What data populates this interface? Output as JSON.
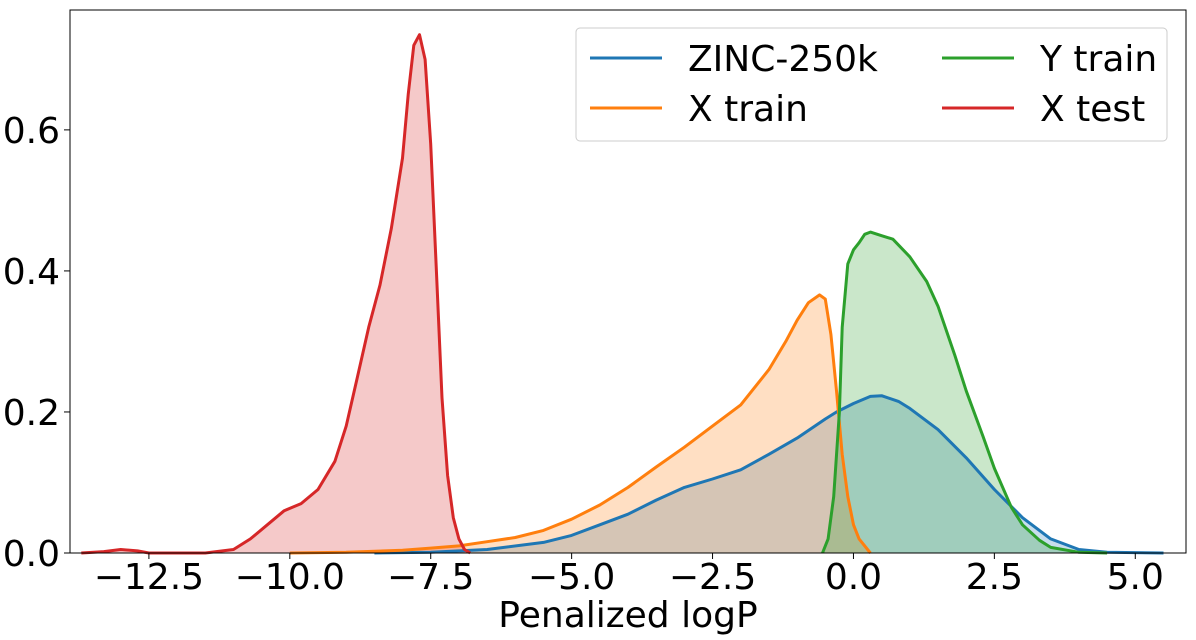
{
  "chart_data": {
    "type": "area",
    "title": "",
    "xlabel": "Penalized logP",
    "ylabel": "",
    "xlim": [
      -13.9,
      5.9
    ],
    "ylim": [
      0,
      0.77
    ],
    "xticks": [
      -12.5,
      -10.0,
      -7.5,
      -5.0,
      -2.5,
      0.0,
      2.5,
      5.0
    ],
    "xtick_labels": [
      "−12.5",
      "−10.0",
      "−7.5",
      "−5.0",
      "−2.5",
      "0.0",
      "2.5",
      "5.0"
    ],
    "yticks": [
      0.0,
      0.2,
      0.4,
      0.6
    ],
    "ytick_labels": [
      "0.0",
      "0.2",
      "0.4",
      "0.6"
    ],
    "grid": false,
    "legend": {
      "position": "top-right",
      "columns": 2
    },
    "series": [
      {
        "name": "ZINC-250k",
        "color": "#1f77b4",
        "fill_alpha": 0.25,
        "points": [
          [
            -8.5,
            0.0
          ],
          [
            -7.5,
            0.001
          ],
          [
            -6.5,
            0.005
          ],
          [
            -5.5,
            0.015
          ],
          [
            -5.0,
            0.025
          ],
          [
            -4.5,
            0.04
          ],
          [
            -4.0,
            0.055
          ],
          [
            -3.5,
            0.075
          ],
          [
            -3.0,
            0.093
          ],
          [
            -2.5,
            0.105
          ],
          [
            -2.0,
            0.118
          ],
          [
            -1.5,
            0.14
          ],
          [
            -1.0,
            0.163
          ],
          [
            -0.5,
            0.19
          ],
          [
            -0.3,
            0.2
          ],
          [
            0.0,
            0.212
          ],
          [
            0.3,
            0.222
          ],
          [
            0.5,
            0.223
          ],
          [
            0.8,
            0.215
          ],
          [
            1.0,
            0.205
          ],
          [
            1.5,
            0.175
          ],
          [
            2.0,
            0.135
          ],
          [
            2.5,
            0.09
          ],
          [
            3.0,
            0.05
          ],
          [
            3.5,
            0.02
          ],
          [
            4.0,
            0.005
          ],
          [
            4.5,
            0.001
          ],
          [
            5.5,
            0.0
          ]
        ]
      },
      {
        "name": "X train",
        "color": "#ff7f0e",
        "fill_alpha": 0.25,
        "points": [
          [
            -10.0,
            0.0
          ],
          [
            -9.0,
            0.001
          ],
          [
            -8.0,
            0.004
          ],
          [
            -7.5,
            0.007
          ],
          [
            -7.0,
            0.01
          ],
          [
            -6.5,
            0.016
          ],
          [
            -6.0,
            0.022
          ],
          [
            -5.5,
            0.032
          ],
          [
            -5.0,
            0.048
          ],
          [
            -4.5,
            0.068
          ],
          [
            -4.0,
            0.093
          ],
          [
            -3.5,
            0.122
          ],
          [
            -3.0,
            0.15
          ],
          [
            -2.5,
            0.18
          ],
          [
            -2.0,
            0.21
          ],
          [
            -1.5,
            0.26
          ],
          [
            -1.2,
            0.3
          ],
          [
            -1.0,
            0.33
          ],
          [
            -0.8,
            0.355
          ],
          [
            -0.6,
            0.366
          ],
          [
            -0.5,
            0.36
          ],
          [
            -0.4,
            0.31
          ],
          [
            -0.3,
            0.23
          ],
          [
            -0.2,
            0.14
          ],
          [
            -0.1,
            0.08
          ],
          [
            0.0,
            0.04
          ],
          [
            0.1,
            0.02
          ],
          [
            0.3,
            0.0
          ]
        ]
      },
      {
        "name": "Y train",
        "color": "#2ca02c",
        "fill_alpha": 0.25,
        "points": [
          [
            -0.55,
            0.0
          ],
          [
            -0.45,
            0.02
          ],
          [
            -0.35,
            0.08
          ],
          [
            -0.25,
            0.2
          ],
          [
            -0.2,
            0.32
          ],
          [
            -0.1,
            0.41
          ],
          [
            0.0,
            0.43
          ],
          [
            0.1,
            0.44
          ],
          [
            0.2,
            0.452
          ],
          [
            0.3,
            0.455
          ],
          [
            0.5,
            0.45
          ],
          [
            0.7,
            0.445
          ],
          [
            1.0,
            0.42
          ],
          [
            1.3,
            0.385
          ],
          [
            1.5,
            0.35
          ],
          [
            1.8,
            0.28
          ],
          [
            2.0,
            0.23
          ],
          [
            2.3,
            0.165
          ],
          [
            2.5,
            0.12
          ],
          [
            2.8,
            0.065
          ],
          [
            3.0,
            0.04
          ],
          [
            3.3,
            0.018
          ],
          [
            3.5,
            0.008
          ],
          [
            4.0,
            0.001
          ],
          [
            4.5,
            0.0
          ]
        ]
      },
      {
        "name": "X test",
        "color": "#d62728",
        "fill_alpha": 0.25,
        "points": [
          [
            -13.7,
            0.0
          ],
          [
            -13.3,
            0.002
          ],
          [
            -13.0,
            0.005
          ],
          [
            -12.7,
            0.003
          ],
          [
            -12.5,
            0.0
          ],
          [
            -11.5,
            0.0
          ],
          [
            -11.0,
            0.005
          ],
          [
            -10.7,
            0.02
          ],
          [
            -10.4,
            0.04
          ],
          [
            -10.1,
            0.06
          ],
          [
            -9.8,
            0.07
          ],
          [
            -9.5,
            0.09
          ],
          [
            -9.2,
            0.13
          ],
          [
            -9.0,
            0.18
          ],
          [
            -8.8,
            0.25
          ],
          [
            -8.6,
            0.32
          ],
          [
            -8.4,
            0.38
          ],
          [
            -8.2,
            0.46
          ],
          [
            -8.0,
            0.56
          ],
          [
            -7.9,
            0.65
          ],
          [
            -7.8,
            0.72
          ],
          [
            -7.7,
            0.735
          ],
          [
            -7.6,
            0.7
          ],
          [
            -7.5,
            0.58
          ],
          [
            -7.4,
            0.4
          ],
          [
            -7.3,
            0.22
          ],
          [
            -7.2,
            0.11
          ],
          [
            -7.1,
            0.05
          ],
          [
            -7.0,
            0.02
          ],
          [
            -6.9,
            0.005
          ],
          [
            -6.8,
            0.0
          ]
        ]
      }
    ]
  }
}
